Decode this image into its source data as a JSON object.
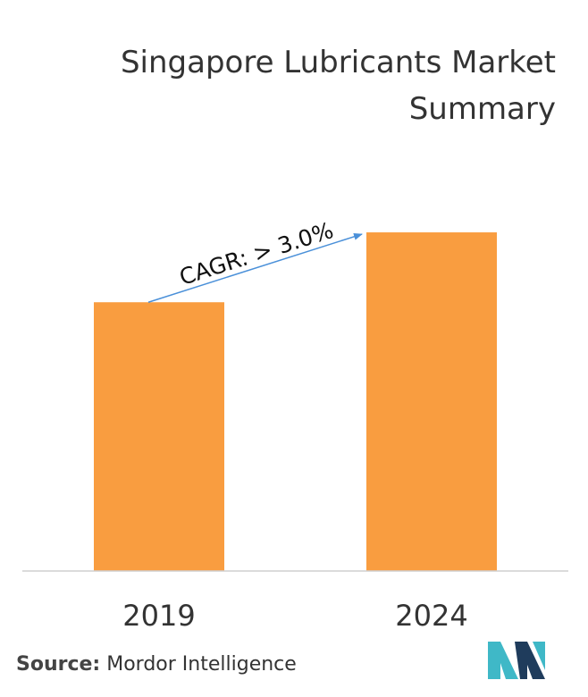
{
  "title_lines": [
    "Singapore Lubricants Market",
    "Summary"
  ],
  "chart_data": {
    "type": "bar",
    "title": "Singapore Lubricants Market Summary",
    "categories": [
      "2019",
      "2024"
    ],
    "values": [
      100,
      126
    ],
    "ylim": [
      0,
      130
    ],
    "xlabel": "",
    "ylabel": "",
    "bar_color": "#f99d40",
    "annotation": {
      "label": "CAGR: > 3.0%",
      "from": "2019",
      "to": "2024",
      "color": "#4a90d9"
    },
    "grid": false,
    "legend": "none"
  },
  "source": {
    "label": "Source:",
    "text": "Mordor Intelligence"
  },
  "logo": {
    "name": "mordor-intelligence-logo",
    "colors": [
      "#1f3c5c",
      "#3fb8c7"
    ]
  }
}
